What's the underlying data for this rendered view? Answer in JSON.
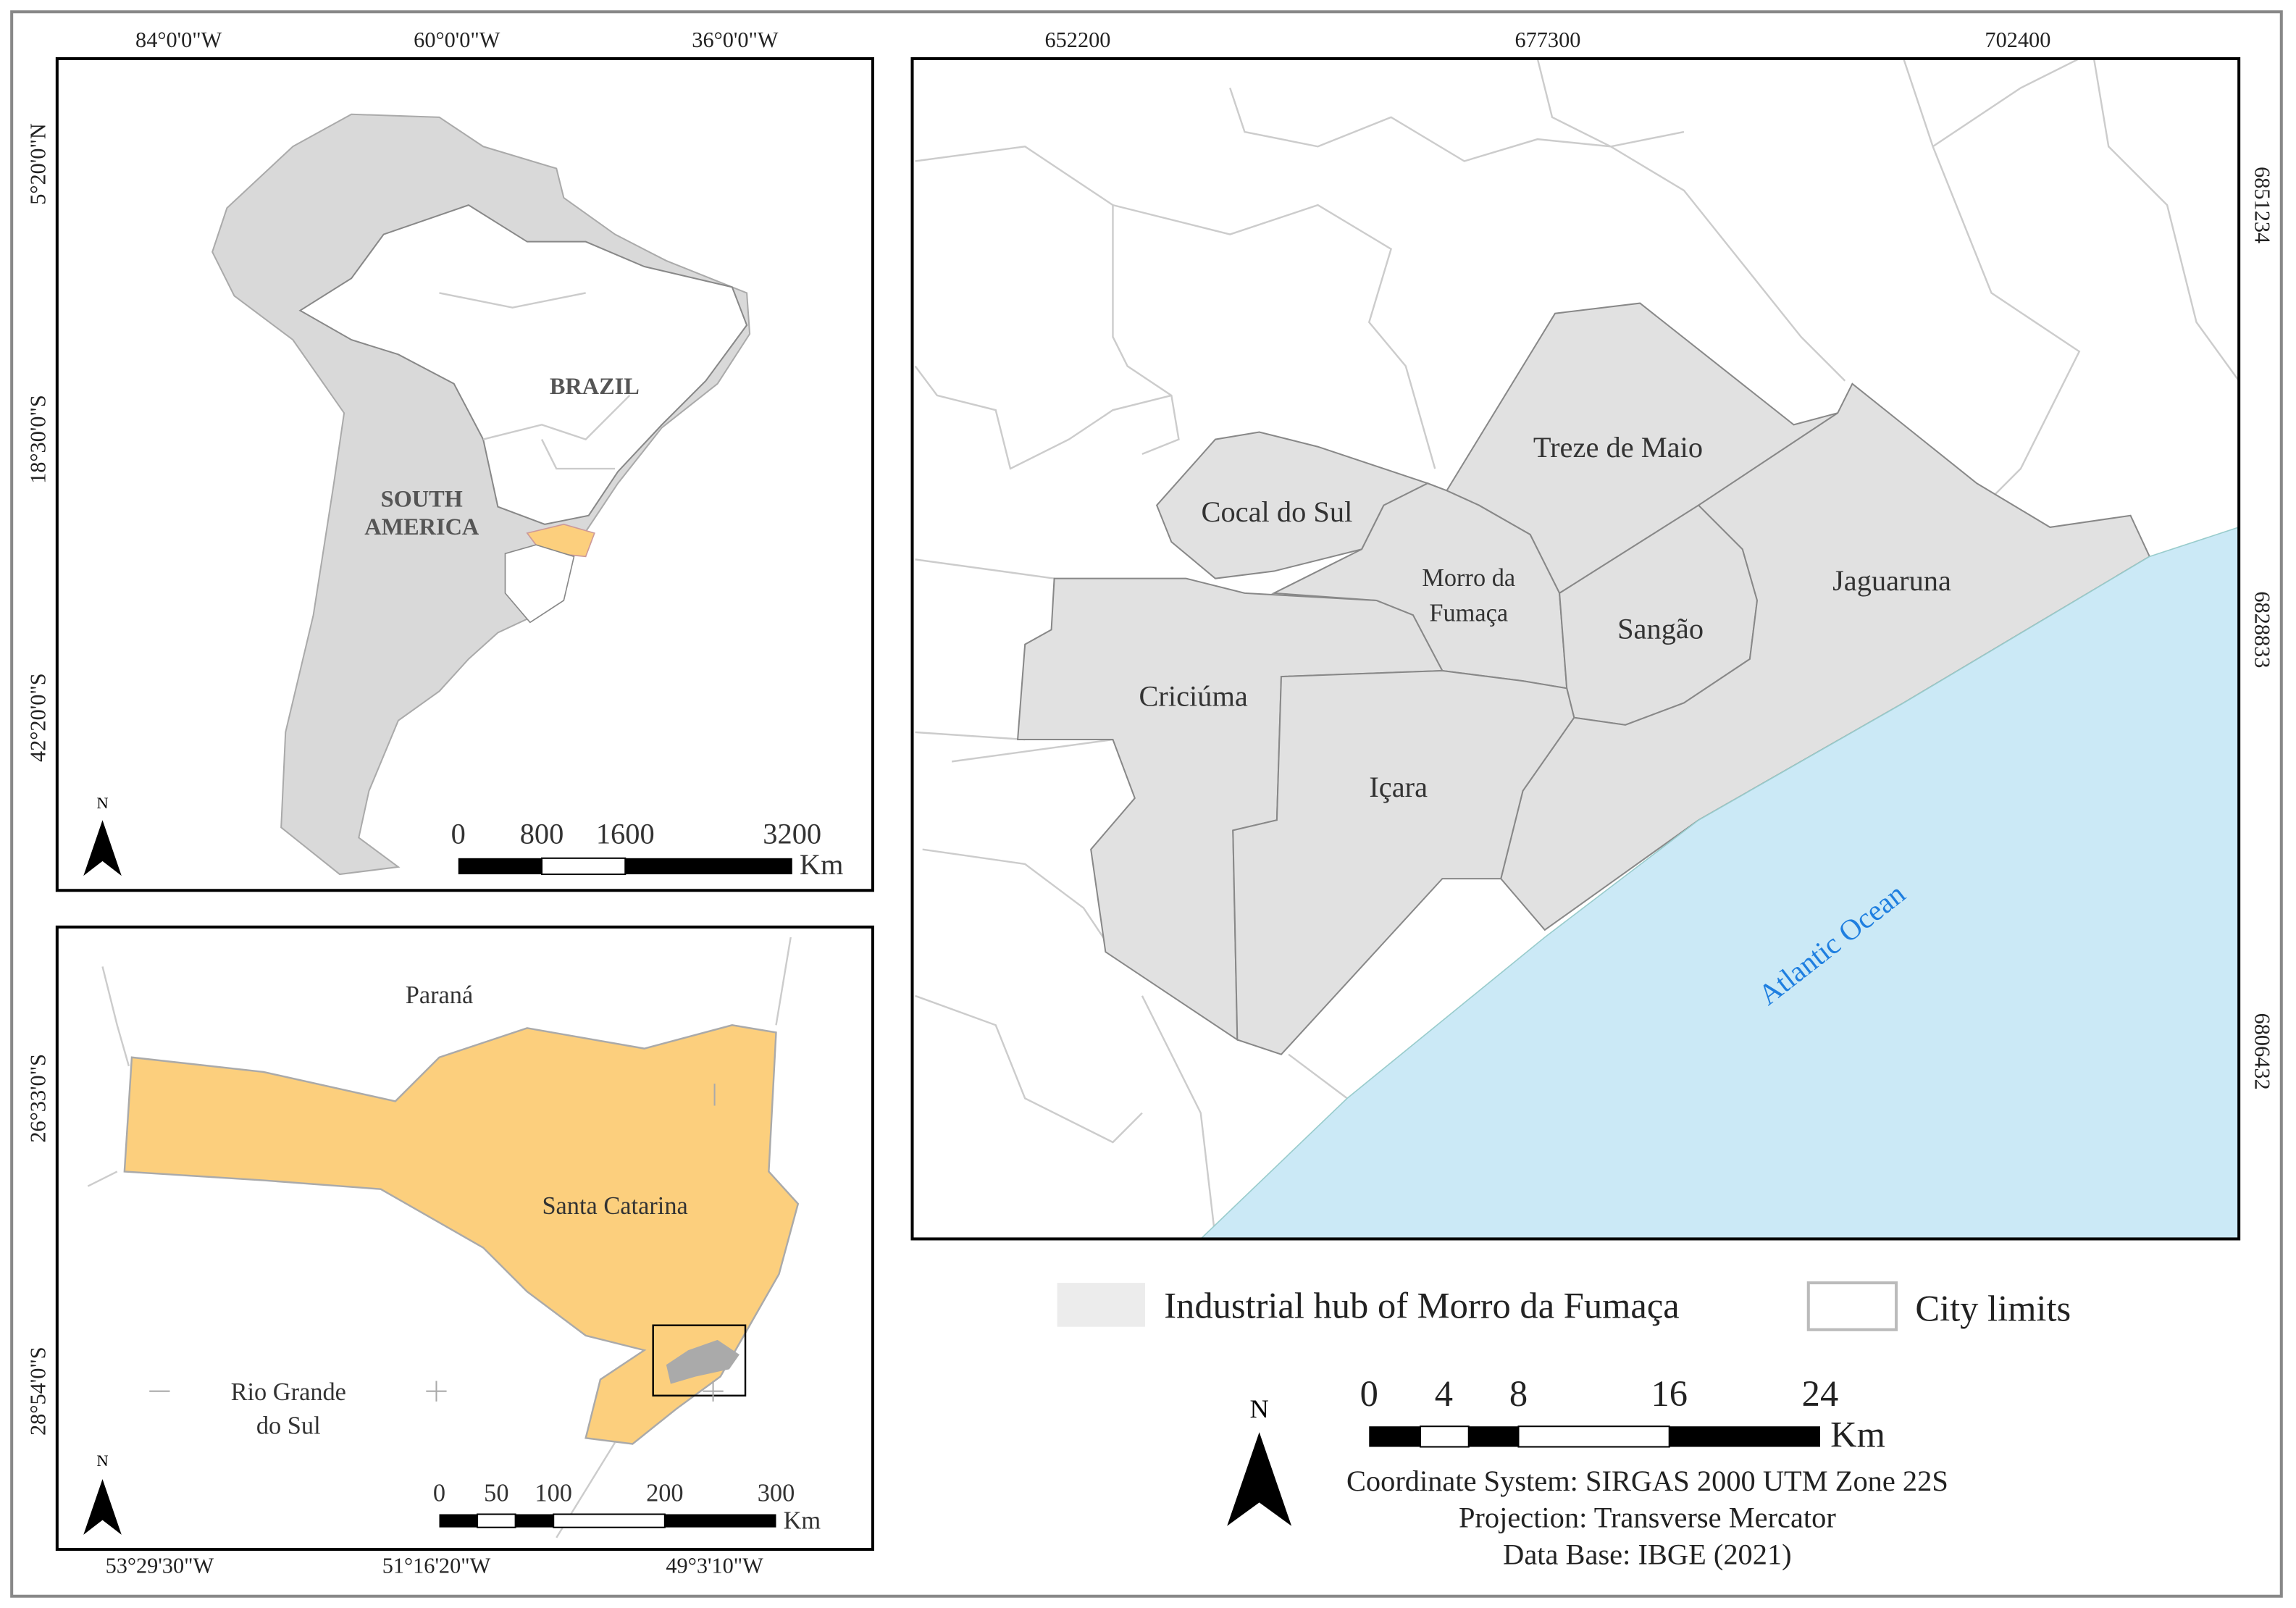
{
  "south_america_map": {
    "top_ticks": [
      "84°0'0\"W",
      "60°0'0\"W",
      "36°0'0\"W"
    ],
    "left_ticks": [
      "5°20'0\"N",
      "18°30'0\"S",
      "42°20'0\"S"
    ],
    "brazil": "BRAZIL",
    "south_america": [
      "SOUTH",
      "AMERICA"
    ],
    "north": "N",
    "scale": {
      "ticks": [
        "0",
        "800",
        "1600",
        "3200"
      ],
      "unit": "Km"
    }
  },
  "state_map": {
    "bottom_ticks": [
      "53°29'30\"W",
      "51°16'20\"W",
      "49°3'10\"W"
    ],
    "left_ticks": [
      "26°33'0\"S",
      "28°54'0\"S"
    ],
    "parana": "Paraná",
    "santa_catarina": "Santa Catarina",
    "rio_grande_do_sul": [
      "Rio Grande",
      "do Sul"
    ],
    "north": "N",
    "scale": {
      "ticks": [
        "0",
        "50",
        "100",
        "200",
        "300"
      ],
      "unit": "Km"
    }
  },
  "main_map": {
    "top_ticks": [
      "652200",
      "677300",
      "702400"
    ],
    "right_ticks": [
      "6851234",
      "6828833",
      "6806432"
    ],
    "cities": {
      "treze_de_maio": "Treze de Maio",
      "cocal_do_sul": "Cocal do Sul",
      "morro_da_fumaca": [
        "Morro da",
        "Fumaça"
      ],
      "sangao": "Sangão",
      "jaguaruna": "Jaguaruna",
      "criciuma": "Criciúma",
      "icara": "Içara"
    },
    "ocean": "Atlantic Ocean"
  },
  "legend": {
    "industrial_hub": "Industrial hub of Morro da Fumaça",
    "city_limits": "City limits"
  },
  "scale": {
    "ticks": [
      "0",
      "4",
      "8",
      "16",
      "24"
    ],
    "unit": "Km"
  },
  "north": "N",
  "notes": [
    "Coordinate System: SIRGAS 2000 UTM Zone 22S",
    "Projection: Transverse Mercator",
    "Data Base: IBGE (2021)"
  ]
}
